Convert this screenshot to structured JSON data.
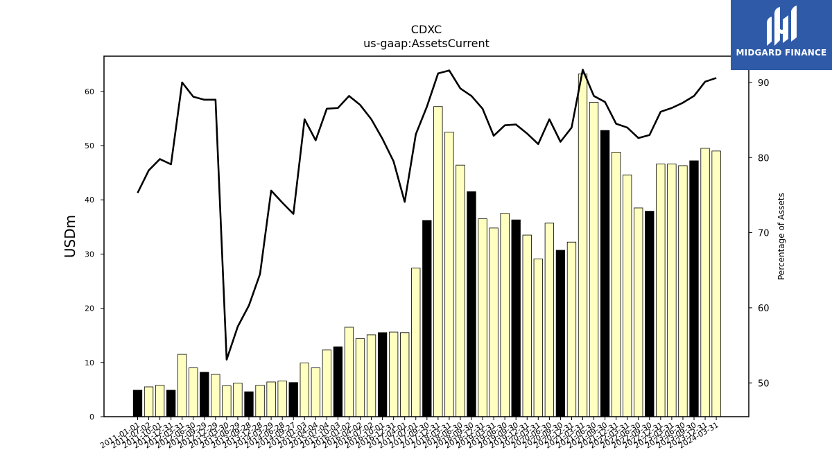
{
  "brand": {
    "name": "MIDGARD FINANCE",
    "logo_icon": "midgard-logo-icon",
    "color": "#2f5aa8"
  },
  "chart_data": {
    "type": "bar",
    "title": "CDXC",
    "subtitle": "us-gaap:AssetsCurrent",
    "ylabel": "USDm",
    "y2label": "Percentage of Assets",
    "ylim": [
      0,
      66.5
    ],
    "y2lim": [
      45.5,
      93.5
    ],
    "yticks": [
      0,
      10,
      20,
      30,
      40,
      50,
      60
    ],
    "y2ticks": [
      50,
      60,
      70,
      80,
      90
    ],
    "grid": false,
    "legend": "none",
    "colors": {
      "bar_annual": "#000000",
      "bar_quarter": "#ffffc0",
      "bar_edge": "#000000",
      "line": "#000000"
    },
    "categories": [
      "2011-01-01",
      "2011-07-02",
      "2011-10-01",
      "2011-12-31",
      "2012-03-31",
      "2012-06-30",
      "2012-09-29",
      "2012-12-29",
      "2013-03-30",
      "2013-06-29",
      "2013-09-28",
      "2013-12-28",
      "2014-03-29",
      "2014-06-28",
      "2014-09-27",
      "2015-01-03",
      "2015-04-04",
      "2015-07-04",
      "2015-10-03",
      "2016-01-02",
      "2016-04-02",
      "2016-07-02",
      "2016-10-01",
      "2016-12-31",
      "2017-04-01",
      "2017-07-01",
      "2017-09-30",
      "2017-12-31",
      "2018-03-31",
      "2018-06-30",
      "2018-09-30",
      "2018-12-31",
      "2019-03-31",
      "2019-06-30",
      "2019-09-30",
      "2019-12-31",
      "2020-03-31",
      "2020-06-30",
      "2020-09-30",
      "2020-12-31",
      "2021-03-31",
      "2021-06-30",
      "2021-09-30",
      "2021-12-31",
      "2022-03-31",
      "2022-06-30",
      "2022-09-30",
      "2022-12-31",
      "2023-03-31",
      "2023-06-30",
      "2023-09-30",
      "2023-12-31",
      "2024-03-31"
    ],
    "bar_kind": [
      "annual",
      "q",
      "q",
      "annual",
      "q",
      "q",
      "annual",
      "q",
      "q",
      "q",
      "annual",
      "q",
      "q",
      "q",
      "annual",
      "q",
      "q",
      "q",
      "annual",
      "q",
      "q",
      "q",
      "annual",
      "q",
      "q",
      "q",
      "annual",
      "q",
      "q",
      "q",
      "annual",
      "q",
      "q",
      "q",
      "annual",
      "q",
      "q",
      "q",
      "annual",
      "q",
      "q",
      "q",
      "annual",
      "q",
      "q",
      "q",
      "annual",
      "q",
      "q",
      "q",
      "annual",
      "q"
    ],
    "series": [
      {
        "name": "AssetsCurrent",
        "axis": "left",
        "kind": "bar",
        "values": [
          4.9,
          5.5,
          5.8,
          4.9,
          11.5,
          9.0,
          8.2,
          7.8,
          5.7,
          6.2,
          4.6,
          5.8,
          6.4,
          6.6,
          6.3,
          9.9,
          9.0,
          12.3,
          12.9,
          16.5,
          14.4,
          15.1,
          15.5,
          15.6,
          15.5,
          27.4,
          36.2,
          57.2,
          52.5,
          46.4,
          41.5,
          36.5,
          34.8,
          37.5,
          36.3,
          33.5,
          29.1,
          35.7,
          30.7,
          32.2,
          63.2,
          58.0,
          52.8,
          48.8,
          44.6,
          38.5,
          37.9,
          46.6,
          46.6,
          46.3,
          47.2,
          49.5,
          49.0
        ]
      },
      {
        "name": "Percentage of Assets",
        "axis": "right",
        "kind": "line",
        "values": [
          75.3,
          78.3,
          79.8,
          79.1,
          90.0,
          88.1,
          87.7,
          87.7,
          53.1,
          57.5,
          60.3,
          64.5,
          75.6,
          74.0,
          72.5,
          85.1,
          82.3,
          86.5,
          86.6,
          88.2,
          87.0,
          85.1,
          82.5,
          79.5,
          74.1,
          83.1,
          86.8,
          91.2,
          91.6,
          89.2,
          88.2,
          86.5,
          82.9,
          84.3,
          84.4,
          83.2,
          81.8,
          85.1,
          82.1,
          84.0,
          91.7,
          88.2,
          87.4,
          84.5,
          84.0,
          82.6,
          83.0,
          86.1,
          86.6,
          87.3,
          88.2,
          90.1,
          90.6
        ]
      }
    ]
  }
}
